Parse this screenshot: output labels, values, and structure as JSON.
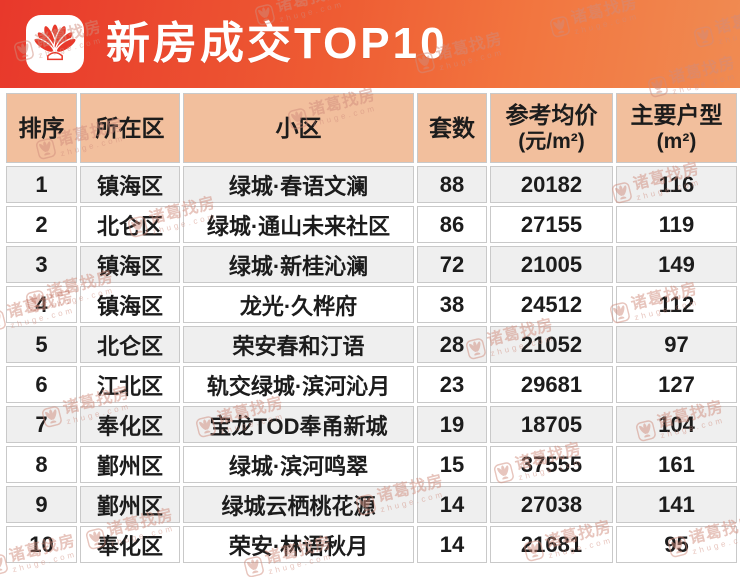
{
  "header": {
    "title": "新房成交TOP10"
  },
  "watermark": {
    "brand": "诸葛找房",
    "domain": "zhuge.com"
  },
  "colors": {
    "band_red": "#E8382B",
    "band_orange": "#F08B52",
    "header_peach": "#F2BF9D",
    "row_alt_gray": "#EFEFEF",
    "title_text": "#FFFFFF",
    "cell_text": "#1C1C1C"
  },
  "chart_data": {
    "type": "table",
    "title": "新房成交TOP10",
    "columns": [
      {
        "label": "排序",
        "sub": ""
      },
      {
        "label": "所在区",
        "sub": ""
      },
      {
        "label": "小区",
        "sub": ""
      },
      {
        "label": "套数",
        "sub": ""
      },
      {
        "label": "参考均价",
        "sub": "(元/m²)"
      },
      {
        "label": "主要户型",
        "sub": "(m²)"
      }
    ],
    "rows": [
      [
        "1",
        "镇海区",
        "绿城·春语文澜",
        "88",
        "20182",
        "116"
      ],
      [
        "2",
        "北仑区",
        "绿城·通山未来社区",
        "86",
        "27155",
        "119"
      ],
      [
        "3",
        "镇海区",
        "绿城·新桂沁澜",
        "72",
        "21005",
        "149"
      ],
      [
        "4",
        "镇海区",
        "龙光·久桦府",
        "38",
        "24512",
        "112"
      ],
      [
        "5",
        "北仑区",
        "荣安春和汀语",
        "28",
        "21052",
        "97"
      ],
      [
        "6",
        "江北区",
        "轨交绿城·滨河沁月",
        "23",
        "29681",
        "127"
      ],
      [
        "7",
        "奉化区",
        "宝龙TOD奉甬新城",
        "19",
        "18705",
        "104"
      ],
      [
        "8",
        "鄞州区",
        "绿城·滨河鸣翠",
        "15",
        "37555",
        "161"
      ],
      [
        "9",
        "鄞州区",
        "绿城云栖桃花源",
        "14",
        "27038",
        "141"
      ],
      [
        "10",
        "奉化区",
        "荣安·林语秋月",
        "14",
        "21681",
        "95"
      ]
    ]
  }
}
